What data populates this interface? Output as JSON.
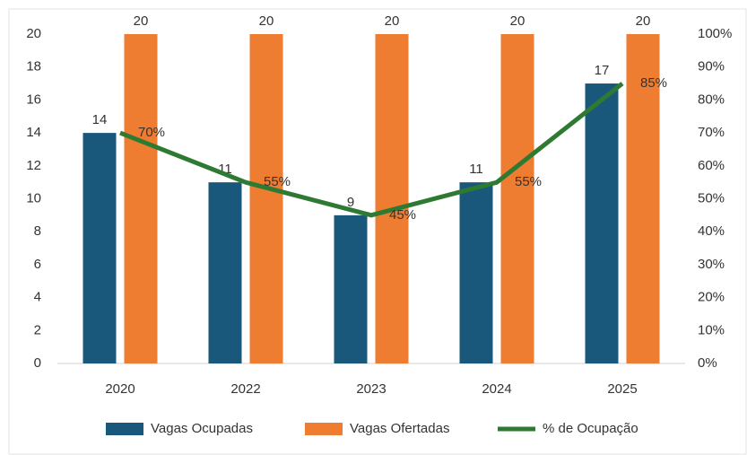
{
  "chart_data": {
    "type": "bar",
    "categories": [
      "2020",
      "2022",
      "2023",
      "2024",
      "2025"
    ],
    "series": [
      {
        "name": "Vagas Ocupadas",
        "color": "#19587a",
        "values": [
          14,
          11,
          9,
          11,
          17
        ]
      },
      {
        "name": "Vagas Ofertadas",
        "color": "#ee7d31",
        "values": [
          20,
          20,
          20,
          20,
          20
        ]
      },
      {
        "name": "% de Ocupação",
        "color": "#2e7a32",
        "type": "line",
        "axis": "y2",
        "values": [
          70,
          55,
          45,
          55,
          85
        ],
        "value_labels": [
          "70%",
          "55%",
          "45%",
          "55%",
          "85%"
        ]
      }
    ],
    "ylim": [
      0,
      20
    ],
    "yticks": [
      0,
      2,
      4,
      6,
      8,
      10,
      12,
      14,
      16,
      18,
      20
    ],
    "y2lim": [
      0,
      100
    ],
    "y2ticks": [
      {
        "value": 0,
        "label": "0%"
      },
      {
        "value": 10,
        "label": "10%"
      },
      {
        "value": 20,
        "label": "20%"
      },
      {
        "value": 30,
        "label": "30%"
      },
      {
        "value": 40,
        "label": "40%"
      },
      {
        "value": 50,
        "label": "50%"
      },
      {
        "value": 60,
        "label": "60%"
      },
      {
        "value": 70,
        "label": "70%"
      },
      {
        "value": 80,
        "label": "80%"
      },
      {
        "value": 90,
        "label": "90%"
      },
      {
        "value": 100,
        "label": "100%"
      }
    ],
    "grid": false,
    "legend": "bottom"
  }
}
